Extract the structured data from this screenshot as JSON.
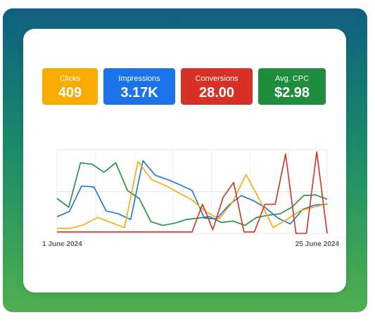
{
  "metrics": [
    {
      "label": "Clicks",
      "value": "409",
      "color": "#f9ab00"
    },
    {
      "label": "Impressions",
      "value": "3.17K",
      "color": "#1a73e8"
    },
    {
      "label": "Conversions",
      "value": "28.00",
      "color": "#d93025"
    },
    {
      "label": "Avg. CPC",
      "value": "$2.98",
      "color": "#1e8e3e"
    }
  ],
  "chart_data": {
    "type": "line",
    "x_start_label": "1 June 2024",
    "x_end_label": "25 June 2024",
    "grid": true,
    "series": [
      {
        "color": "#1e8e3e",
        "values": [
          48,
          36,
          97,
          95,
          84,
          97,
          59,
          48,
          16,
          11,
          14,
          19,
          21,
          23,
          15,
          17,
          11,
          22,
          25,
          27,
          36,
          52,
          53,
          47
        ]
      },
      {
        "color": "#1a73e8",
        "values": [
          23,
          30,
          65,
          64,
          31,
          27,
          19,
          100,
          80,
          74,
          67,
          59,
          21,
          20,
          39,
          52,
          45,
          35,
          21,
          13,
          33,
          39,
          40
        ]
      },
      {
        "color": "#f9ab00",
        "values": [
          7,
          7,
          12,
          22,
          15,
          8,
          99,
          74,
          66,
          56,
          46,
          30,
          20,
          43,
          81,
          46,
          8,
          19,
          31,
          36,
          41
        ]
      },
      {
        "color": "#d93025",
        "values": [
          2,
          2,
          2,
          2,
          2,
          2,
          2,
          2,
          2,
          2,
          2,
          2,
          2,
          2,
          40,
          5,
          50,
          70,
          2,
          2,
          40,
          40,
          109,
          0,
          0,
          112,
          0
        ]
      }
    ]
  }
}
